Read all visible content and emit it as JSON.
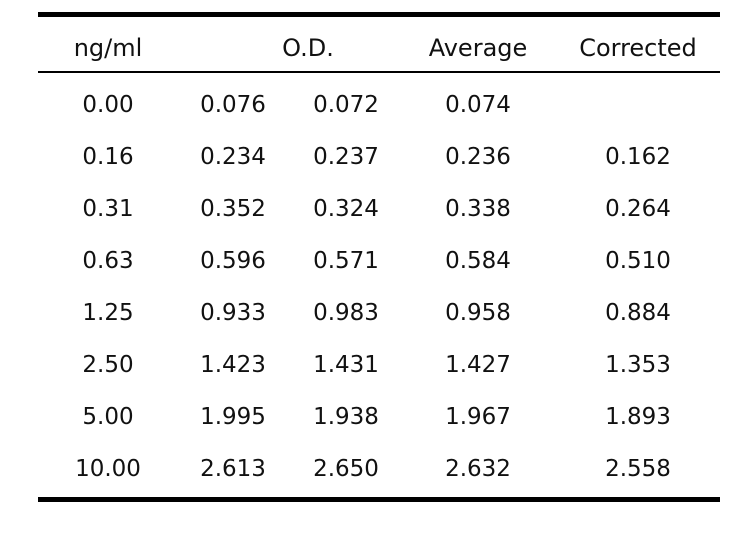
{
  "table": {
    "headers": {
      "concentration": "ng/ml",
      "od": "O.D.",
      "average": "Average",
      "corrected": "Corrected"
    },
    "rows": [
      {
        "concentration": "0.00",
        "od1": "0.076",
        "od2": "0.072",
        "average": "0.074",
        "corrected": ""
      },
      {
        "concentration": "0.16",
        "od1": "0.234",
        "od2": "0.237",
        "average": "0.236",
        "corrected": "0.162"
      },
      {
        "concentration": "0.31",
        "od1": "0.352",
        "od2": "0.324",
        "average": "0.338",
        "corrected": "0.264"
      },
      {
        "concentration": "0.63",
        "od1": "0.596",
        "od2": "0.571",
        "average": "0.584",
        "corrected": "0.510"
      },
      {
        "concentration": "1.25",
        "od1": "0.933",
        "od2": "0.983",
        "average": "0.958",
        "corrected": "0.884"
      },
      {
        "concentration": "2.50",
        "od1": "1.423",
        "od2": "1.431",
        "average": "1.427",
        "corrected": "1.353"
      },
      {
        "concentration": "5.00",
        "od1": "1.995",
        "od2": "1.938",
        "average": "1.967",
        "corrected": "1.893"
      },
      {
        "concentration": "10.00",
        "od1": "2.613",
        "od2": "2.650",
        "average": "2.632",
        "corrected": "2.558"
      }
    ]
  }
}
